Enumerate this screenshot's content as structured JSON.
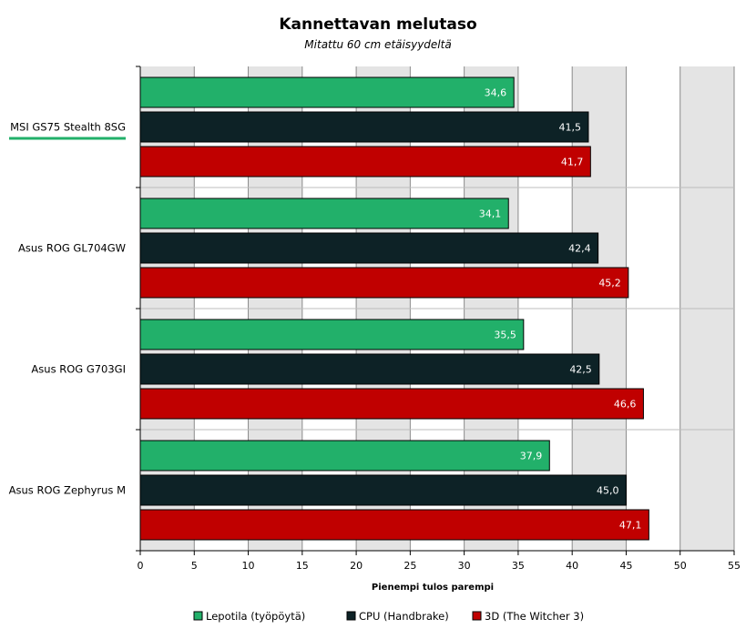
{
  "chart_data": {
    "type": "bar",
    "orientation": "horizontal",
    "title": "Kannettavan melutaso",
    "subtitle": "Mitattu 60 cm etäisyydeltä",
    "xlabel": "Pienempi tulos parempi",
    "xlim": [
      0,
      55
    ],
    "xticks": [
      "0",
      "5",
      "10",
      "15",
      "20",
      "25",
      "30",
      "35",
      "40",
      "45",
      "50",
      "55"
    ],
    "grid": true,
    "legend_position": "bottom",
    "highlighted_category": "MSI GS75 Stealth 8SG",
    "categories": [
      "MSI GS75 Stealth 8SG",
      "Asus ROG GL704GW",
      "Asus ROG G703GI",
      "Asus ROG Zephyrus M"
    ],
    "series": [
      {
        "name": "Lepotila (työpöytä)",
        "color": "#22b06a",
        "values": [
          34.6,
          34.1,
          35.5,
          37.9
        ],
        "labels": [
          "34,6",
          "34,1",
          "35,5",
          "37,9"
        ]
      },
      {
        "name": "CPU (Handbrake)",
        "color": "#0d2226",
        "values": [
          41.5,
          42.4,
          42.5,
          45.0
        ],
        "labels": [
          "41,5",
          "42,4",
          "42,5",
          "45,0"
        ]
      },
      {
        "name": "3D (The Witcher 3)",
        "color": "#c00000",
        "values": [
          41.7,
          45.2,
          46.6,
          47.1
        ],
        "labels": [
          "41,7",
          "45,2",
          "46,6",
          "47,1"
        ]
      }
    ],
    "highlight_color": "#22b06a"
  }
}
